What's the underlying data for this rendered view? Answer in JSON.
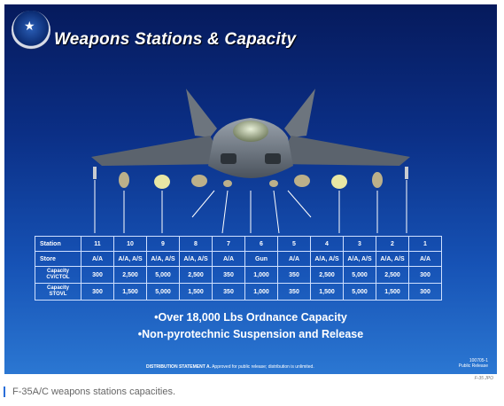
{
  "slide": {
    "title": "Weapons Stations & Capacity",
    "logo_icon": "program-emblem-icon",
    "bullets": [
      "•Over 18,000 Lbs Ordnance Capacity",
      "•Non-pyrotechnic Suspension and Release"
    ],
    "distribution_label": "DISTRIBUTION STATEMENT A.",
    "distribution_text": "Approved for public release; distribution is unlimited.",
    "release_code": "100705-1",
    "release_text": "Public Release"
  },
  "table": {
    "header_label": "Station",
    "stations": [
      "11",
      "10",
      "9",
      "8",
      "7",
      "6",
      "5",
      "4",
      "3",
      "2",
      "1"
    ],
    "rows": [
      {
        "label": [
          "Store"
        ],
        "values": [
          "A/A",
          "A/A, A/S",
          "A/A, A/S",
          "A/A, A/S",
          "A/A",
          "Gun",
          "A/A",
          "A/A, A/S",
          "A/A, A/S",
          "A/A, A/S",
          "A/A"
        ]
      },
      {
        "label": [
          "Capacity",
          "CV/CTOL"
        ],
        "values": [
          "300",
          "2,500",
          "5,000",
          "2,500",
          "350",
          "1,000",
          "350",
          "2,500",
          "5,000",
          "2,500",
          "300"
        ]
      },
      {
        "label": [
          "Capacity",
          "STOVL"
        ],
        "values": [
          "300",
          "1,500",
          "5,000",
          "1,500",
          "350",
          "1,000",
          "350",
          "1,500",
          "5,000",
          "1,500",
          "300"
        ]
      }
    ]
  },
  "image_credit": "F-35 JPO",
  "caption": "F-35A/C weapons stations capacities.",
  "colors": {
    "accent": "#2a6ed8",
    "slide_top": "#061a5c",
    "slide_bottom": "#2b77d2"
  }
}
